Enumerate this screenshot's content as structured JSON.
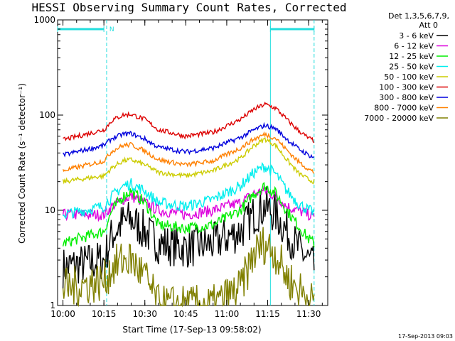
{
  "chart_data": {
    "type": "line",
    "title": "HESSI Observing Summary Count Rates, Corrected",
    "xlabel": "Start Time (17-Sep-13 09:58:02)",
    "ylabel": "Corrected Count Rate (s⁻¹ detector⁻¹)",
    "footer": "17-Sep-2013 09:03",
    "legend_header": [
      "Det 1,3,5,6,7,9,",
      "Att 0"
    ],
    "legend_position": "outside-right",
    "y_scale": "log",
    "ylim": [
      1,
      1000
    ],
    "xlim": [
      "09:58:02",
      "11:37:00"
    ],
    "x_ticks": [
      "10:00",
      "10:15",
      "10:30",
      "10:45",
      "11:00",
      "11:15",
      "11:30"
    ],
    "y_ticks": [
      "1",
      "10",
      "100",
      "1000"
    ],
    "series": [
      {
        "name": "3 - 6 keV",
        "color": "#000000",
        "x": [
          "10:00",
          "10:15",
          "10:18",
          "10:22",
          "10:25",
          "10:30",
          "10:35",
          "10:45",
          "10:55",
          "11:05",
          "11:10",
          "11:14",
          "11:18",
          "11:22",
          "11:26",
          "11:30",
          "11:32"
        ],
        "values": [
          2.5,
          3.0,
          5.5,
          7.5,
          8.0,
          6.0,
          4.5,
          4.0,
          4.5,
          6.0,
          9.0,
          11.0,
          9.0,
          6.0,
          4.0,
          3.0,
          2.5
        ]
      },
      {
        "name": "6 - 12 keV",
        "color": "#dd00dd",
        "x": [
          "10:00",
          "10:15",
          "10:18",
          "10:22",
          "10:25",
          "10:30",
          "10:35",
          "10:45",
          "10:55",
          "11:05",
          "11:10",
          "11:14",
          "11:18",
          "11:22",
          "11:26",
          "11:30",
          "11:32"
        ],
        "values": [
          9.0,
          9.0,
          11.0,
          13.0,
          14.0,
          12.0,
          10.0,
          9.0,
          10.0,
          12.0,
          15.0,
          16.0,
          14.0,
          11.0,
          10.0,
          9.0,
          8.5
        ]
      },
      {
        "name": "12 - 25 keV",
        "color": "#00ee00",
        "x": [
          "10:00",
          "10:15",
          "10:18",
          "10:22",
          "10:25",
          "10:30",
          "10:35",
          "10:45",
          "10:55",
          "11:05",
          "11:10",
          "11:14",
          "11:18",
          "11:22",
          "11:26",
          "11:30",
          "11:32"
        ],
        "values": [
          4.5,
          6.0,
          10.0,
          14.0,
          16.0,
          12.0,
          7.0,
          6.5,
          7.0,
          10.0,
          15.0,
          18.0,
          15.0,
          10.0,
          7.0,
          5.0,
          4.5
        ]
      },
      {
        "name": "25 - 50 keV",
        "color": "#00eeee",
        "x": [
          "10:00",
          "10:15",
          "10:18",
          "10:22",
          "10:25",
          "10:30",
          "10:35",
          "10:45",
          "10:55",
          "11:05",
          "11:10",
          "11:14",
          "11:18",
          "11:22",
          "11:26",
          "11:30",
          "11:32"
        ],
        "values": [
          9.0,
          11.0,
          14.0,
          18.0,
          19.0,
          16.0,
          12.0,
          11.0,
          13.0,
          18.0,
          25.0,
          29.0,
          24.0,
          16.0,
          12.0,
          10.0,
          9.5
        ]
      },
      {
        "name": "50 - 100 keV",
        "color": "#cccc00",
        "x": [
          "10:00",
          "10:15",
          "10:18",
          "10:22",
          "10:25",
          "10:30",
          "10:35",
          "10:45",
          "10:55",
          "11:05",
          "11:10",
          "11:14",
          "11:18",
          "11:22",
          "11:26",
          "11:30",
          "11:32"
        ],
        "values": [
          20.0,
          23.0,
          28.0,
          33.0,
          34.0,
          30.0,
          25.0,
          23.0,
          26.0,
          35.0,
          48.0,
          56.0,
          48.0,
          34.0,
          25.0,
          21.0,
          20.0
        ]
      },
      {
        "name": "100 - 300 keV",
        "color": "#dd0000",
        "x": [
          "10:00",
          "10:15",
          "10:18",
          "10:22",
          "10:25",
          "10:30",
          "10:35",
          "10:45",
          "10:55",
          "11:05",
          "11:10",
          "11:14",
          "11:18",
          "11:22",
          "11:26",
          "11:30",
          "11:32"
        ],
        "values": [
          55.0,
          70.0,
          88.0,
          100.0,
          102.0,
          90.0,
          70.0,
          60.0,
          66.0,
          90.0,
          115.0,
          130.0,
          118.0,
          90.0,
          70.0,
          57.0,
          54.0
        ]
      },
      {
        "name": "300 - 800 keV",
        "color": "#0000dd",
        "x": [
          "10:00",
          "10:15",
          "10:18",
          "10:22",
          "10:25",
          "10:30",
          "10:35",
          "10:45",
          "10:55",
          "11:05",
          "11:10",
          "11:14",
          "11:18",
          "11:22",
          "11:26",
          "11:30",
          "11:32"
        ],
        "values": [
          38.0,
          48.0,
          57.0,
          63.0,
          64.0,
          56.0,
          46.0,
          41.0,
          45.0,
          58.0,
          70.0,
          78.0,
          72.0,
          56.0,
          45.0,
          38.0,
          36.0
        ]
      },
      {
        "name": "800 - 7000 keV",
        "color": "#ff8000",
        "x": [
          "10:00",
          "10:15",
          "10:18",
          "10:22",
          "10:25",
          "10:30",
          "10:35",
          "10:45",
          "10:55",
          "11:05",
          "11:10",
          "11:14",
          "11:18",
          "11:22",
          "11:26",
          "11:30",
          "11:32"
        ],
        "values": [
          26.0,
          33.0,
          42.0,
          48.0,
          49.0,
          42.0,
          34.0,
          30.0,
          33.0,
          45.0,
          56.0,
          63.0,
          57.0,
          43.0,
          33.0,
          27.0,
          25.0
        ]
      },
      {
        "name": "7000 - 20000 keV",
        "color": "#808000",
        "x": [
          "10:00",
          "10:15",
          "10:18",
          "10:22",
          "10:25",
          "10:30",
          "10:35",
          "10:45",
          "10:55",
          "11:05",
          "11:10",
          "11:14",
          "11:18",
          "11:22",
          "11:26",
          "11:30",
          "11:32"
        ],
        "values": [
          1.5,
          1.8,
          2.5,
          3.0,
          3.0,
          2.0,
          1.0,
          1.0,
          1.0,
          1.5,
          3.5,
          4.5,
          3.5,
          2.0,
          1.5,
          1.2,
          1.0
        ]
      }
    ],
    "annotations": [
      {
        "type": "vertical-line",
        "x": "10:16",
        "style": "dashed"
      },
      {
        "type": "vertical-line",
        "x": "11:16",
        "style": "solid"
      },
      {
        "type": "vertical-line",
        "x": "11:32",
        "style": "dashed"
      },
      {
        "type": "horizontal-bar",
        "from": "09:58:02",
        "to": "10:15",
        "label": ""
      },
      {
        "type": "text",
        "at": "10:17",
        "text": "N"
      },
      {
        "type": "horizontal-bar",
        "from": "11:16",
        "to": "11:32",
        "label": ""
      }
    ],
    "markers_color": "#22dddd"
  }
}
